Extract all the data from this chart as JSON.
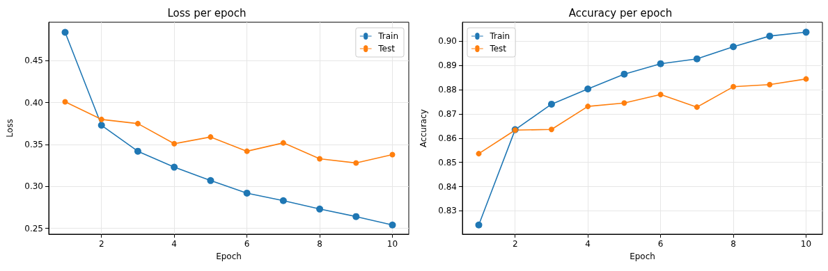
{
  "chart_data": [
    {
      "type": "line",
      "title": "Loss per epoch",
      "xlabel": "Epoch",
      "ylabel": "Loss",
      "x": [
        1,
        2,
        3,
        4,
        5,
        6,
        7,
        8,
        9,
        10
      ],
      "series": [
        {
          "name": "Train",
          "color": "#1f77b4",
          "values": [
            0.484,
            0.373,
            0.342,
            0.323,
            0.307,
            0.292,
            0.283,
            0.273,
            0.264,
            0.254
          ]
        },
        {
          "name": "Test",
          "color": "#ff7f0e",
          "values": [
            0.401,
            0.38,
            0.375,
            0.351,
            0.359,
            0.342,
            0.352,
            0.333,
            0.328,
            0.338
          ]
        }
      ],
      "xlim": [
        0.55,
        10.45
      ],
      "xticks": [
        2,
        4,
        6,
        8,
        10
      ],
      "ylim": [
        0.243,
        0.496
      ],
      "yticks": [
        {
          "value": 0.25,
          "label": "0.25"
        },
        {
          "value": 0.3,
          "label": "0.30"
        },
        {
          "value": 0.35,
          "label": "0.35"
        },
        {
          "value": 0.4,
          "label": "0.40"
        },
        {
          "value": 0.45,
          "label": "0.45"
        }
      ],
      "grid": true,
      "legend": "top right",
      "marker": "circle",
      "line_style": "solid"
    },
    {
      "type": "line",
      "title": "Accuracy per epoch",
      "xlabel": "Epoch",
      "ylabel": "Accuracy",
      "x": [
        1,
        2,
        3,
        4,
        5,
        6,
        7,
        8,
        9,
        10
      ],
      "series": [
        {
          "name": "Train",
          "color": "#1f77b4",
          "values": [
            0.8242,
            0.8635,
            0.874,
            0.8803,
            0.8864,
            0.8907,
            0.8927,
            0.8977,
            0.9021,
            0.9037
          ]
        },
        {
          "name": "Test",
          "color": "#ff7f0e",
          "values": [
            0.8536,
            0.8633,
            0.8636,
            0.8731,
            0.8745,
            0.878,
            0.8728,
            0.8812,
            0.8821,
            0.8844
          ]
        }
      ],
      "xlim": [
        0.55,
        10.45
      ],
      "xticks": [
        2,
        4,
        6,
        8,
        10
      ],
      "ylim": [
        0.8204,
        0.9078
      ],
      "yticks": [
        {
          "value": 0.83,
          "label": "0.83"
        },
        {
          "value": 0.84,
          "label": "0.84"
        },
        {
          "value": 0.85,
          "label": "0.85"
        },
        {
          "value": 0.86,
          "label": "0.86"
        },
        {
          "value": 0.87,
          "label": "0.87"
        },
        {
          "value": 0.88,
          "label": "0.88"
        },
        {
          "value": 0.89,
          "label": "0.89"
        },
        {
          "value": 0.9,
          "label": "0.90"
        }
      ],
      "grid": true,
      "legend": "top left",
      "marker": "circle",
      "line_style": "solid"
    }
  ]
}
